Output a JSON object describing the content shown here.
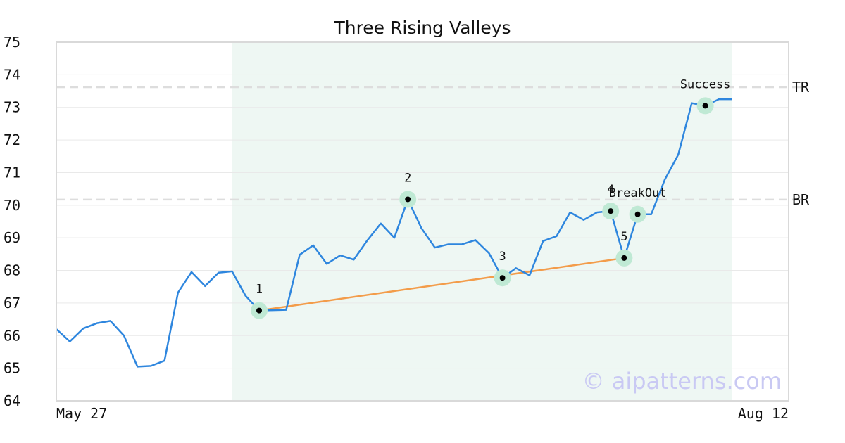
{
  "chart_data": {
    "type": "line",
    "title": "Three Rising Valleys",
    "ylim": [
      64,
      75
    ],
    "yticks": [
      64,
      65,
      66,
      67,
      68,
      69,
      70,
      71,
      72,
      73,
      74,
      75
    ],
    "x_tick_labels": [
      "May 27",
      "Aug 12"
    ],
    "grid": true,
    "series": [
      {
        "values": [
          66.2,
          65.82,
          66.22,
          66.38,
          66.45,
          66.0,
          65.05,
          65.07,
          65.23,
          67.32,
          67.95,
          67.52,
          67.93,
          67.97,
          67.22,
          66.77,
          66.78,
          66.79,
          68.48,
          68.77,
          68.2,
          68.46,
          68.33,
          68.92,
          69.44,
          69.0,
          70.18,
          69.3,
          68.7,
          68.8,
          68.8,
          68.93,
          68.53,
          67.77,
          68.07,
          67.85,
          68.9,
          69.05,
          69.78,
          69.55,
          69.78,
          69.82,
          68.38,
          69.72,
          69.72,
          70.78,
          71.55,
          73.13,
          73.05,
          73.25,
          73.25
        ]
      }
    ],
    "pattern_region": {
      "start_index": 13,
      "end_index": 50
    },
    "trendline": {
      "from_point": "1",
      "to_point": "5"
    },
    "levels": [
      {
        "label": "TR",
        "value": 73.62
      },
      {
        "label": "BR",
        "value": 70.17
      }
    ],
    "points": [
      {
        "label": "1",
        "index": 15,
        "value": 66.77,
        "label_pos": "above"
      },
      {
        "label": "2",
        "index": 26,
        "value": 70.18,
        "label_pos": "above"
      },
      {
        "label": "3",
        "index": 33,
        "value": 67.77,
        "label_pos": "above"
      },
      {
        "label": "4",
        "index": 41,
        "value": 69.82,
        "label_pos": "above"
      },
      {
        "label": "5",
        "index": 42,
        "value": 68.38,
        "label_pos": "above"
      },
      {
        "label": "BreakOut",
        "index": 43,
        "value": 69.72,
        "label_pos": "above"
      },
      {
        "label": "Success",
        "index": 48,
        "value": 73.05,
        "label_pos": "above"
      }
    ],
    "colors": {
      "line": "#2e86de",
      "trendline": "#f39c4a",
      "region": "#eef7f3",
      "marker_halo": "#bfe9d4",
      "level": "#dddddd",
      "grid": "#e9e9e9",
      "frame": "#d9d9d9"
    }
  },
  "watermark": "© aipatterns.com"
}
